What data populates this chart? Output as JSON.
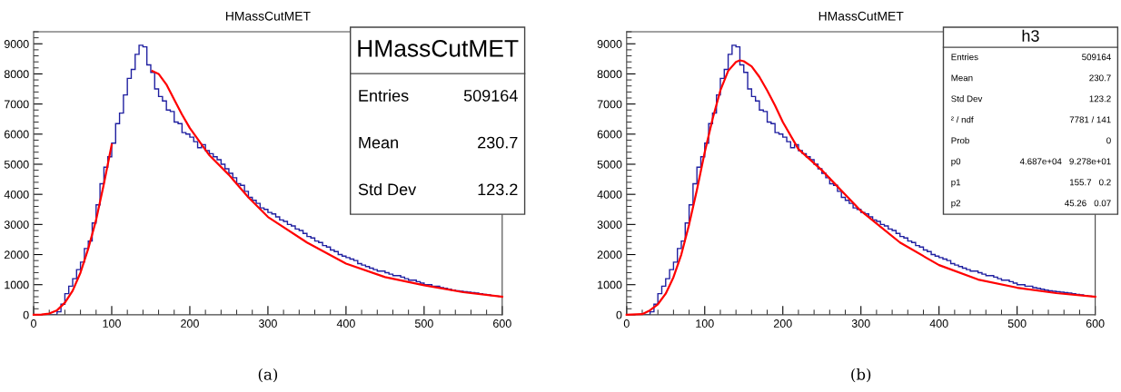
{
  "chart_data": [
    {
      "type": "histogram",
      "title": "HMassCutMET",
      "bins": [
        0,
        5,
        10,
        15,
        20,
        25,
        30,
        35,
        40,
        45,
        50,
        55,
        60,
        65,
        70,
        75,
        80,
        85,
        90,
        95,
        100,
        105,
        110,
        115,
        120,
        125,
        130,
        135,
        140,
        145,
        150,
        155,
        160,
        165,
        170,
        175,
        180,
        185,
        190,
        195,
        200,
        205,
        210,
        215,
        220,
        225,
        230,
        235,
        240,
        245,
        250,
        255,
        260,
        265,
        270,
        275,
        280,
        285,
        290,
        295,
        300,
        305,
        310,
        315,
        320,
        325,
        330,
        335,
        340,
        345,
        350,
        355,
        360,
        365,
        370,
        375,
        380,
        385,
        390,
        395,
        400,
        405,
        410,
        415,
        420,
        425,
        430,
        435,
        440,
        445,
        450,
        455,
        460,
        465,
        470,
        475,
        480,
        485,
        490,
        495,
        500,
        505,
        510,
        515,
        520,
        525,
        530,
        535,
        540,
        545,
        550,
        555,
        560,
        565,
        570,
        575,
        580,
        585,
        590,
        595,
        600
      ],
      "values": [
        0,
        0,
        0,
        0,
        0,
        0,
        100,
        350,
        700,
        950,
        1200,
        1500,
        1750,
        2200,
        2450,
        3050,
        3650,
        4350,
        4900,
        5250,
        5700,
        6350,
        6700,
        7300,
        7850,
        8150,
        8650,
        8950,
        8900,
        8300,
        8050,
        7500,
        7250,
        7100,
        6800,
        6750,
        6400,
        6350,
        6050,
        6000,
        5900,
        5750,
        5550,
        5650,
        5450,
        5350,
        5250,
        5150,
        5000,
        4850,
        4700,
        4550,
        4350,
        4300,
        4100,
        3900,
        3800,
        3700,
        3550,
        3500,
        3400,
        3350,
        3250,
        3150,
        3100,
        3000,
        2950,
        2850,
        2800,
        2700,
        2600,
        2550,
        2450,
        2400,
        2300,
        2250,
        2150,
        2100,
        2000,
        1950,
        1900,
        1850,
        1800,
        1700,
        1650,
        1600,
        1550,
        1500,
        1450,
        1450,
        1400,
        1350,
        1300,
        1300,
        1250,
        1200,
        1150,
        1150,
        1100,
        1050,
        1000,
        1000,
        950,
        950,
        900,
        880,
        850,
        820,
        800,
        780,
        770,
        750,
        740,
        720,
        700,
        680,
        660,
        640,
        620,
        610
      ],
      "color": "#1f1fa0",
      "series": [
        {
          "type": "line",
          "color": "#ff0000",
          "x": [
            0,
            10,
            20,
            30,
            40,
            50,
            60,
            70,
            80,
            90,
            100
          ],
          "values": [
            0,
            10,
            40,
            150,
            400,
            800,
            1400,
            2200,
            3150,
            4350,
            5650
          ]
        },
        {
          "type": "line",
          "color": "#ff0000",
          "x": [
            152,
            160,
            170,
            180,
            190,
            200,
            225,
            250,
            275,
            300,
            350,
            400,
            450,
            500,
            550,
            600
          ],
          "values": [
            8100,
            8000,
            7650,
            7150,
            6650,
            6200,
            5300,
            4650,
            3900,
            3250,
            2400,
            1700,
            1250,
            980,
            750,
            600
          ]
        }
      ],
      "xlim": [
        0,
        600
      ],
      "xticks": [
        0,
        100,
        200,
        300,
        400,
        500,
        600
      ],
      "ylim": [
        0,
        9400
      ],
      "yticks": [
        0,
        1000,
        2000,
        3000,
        4000,
        5000,
        6000,
        7000,
        8000,
        9000
      ],
      "annotations": [
        "HMassCutMET",
        "Entries",
        "509164",
        "Mean",
        "230.7",
        "Std Dev",
        "123.2",
        "(a)"
      ]
    },
    {
      "type": "histogram",
      "title": "HMassCutMET",
      "bins": [
        0,
        5,
        10,
        15,
        20,
        25,
        30,
        35,
        40,
        45,
        50,
        55,
        60,
        65,
        70,
        75,
        80,
        85,
        90,
        95,
        100,
        105,
        110,
        115,
        120,
        125,
        130,
        135,
        140,
        145,
        150,
        155,
        160,
        165,
        170,
        175,
        180,
        185,
        190,
        195,
        200,
        205,
        210,
        215,
        220,
        225,
        230,
        235,
        240,
        245,
        250,
        255,
        260,
        265,
        270,
        275,
        280,
        285,
        290,
        295,
        300,
        305,
        310,
        315,
        320,
        325,
        330,
        335,
        340,
        345,
        350,
        355,
        360,
        365,
        370,
        375,
        380,
        385,
        390,
        395,
        400,
        405,
        410,
        415,
        420,
        425,
        430,
        435,
        440,
        445,
        450,
        455,
        460,
        465,
        470,
        475,
        480,
        485,
        490,
        495,
        500,
        505,
        510,
        515,
        520,
        525,
        530,
        535,
        540,
        545,
        550,
        555,
        560,
        565,
        570,
        575,
        580,
        585,
        590,
        595,
        600
      ],
      "values": [
        0,
        0,
        0,
        0,
        0,
        0,
        100,
        350,
        700,
        950,
        1200,
        1500,
        1750,
        2200,
        2450,
        3050,
        3650,
        4350,
        4900,
        5250,
        5700,
        6350,
        6700,
        7300,
        7850,
        8150,
        8650,
        8950,
        8900,
        8300,
        8050,
        7500,
        7250,
        7100,
        6800,
        6750,
        6400,
        6350,
        6050,
        6000,
        5900,
        5750,
        5550,
        5650,
        5450,
        5350,
        5250,
        5150,
        5000,
        4850,
        4700,
        4550,
        4350,
        4300,
        4100,
        3900,
        3800,
        3700,
        3550,
        3500,
        3400,
        3350,
        3250,
        3150,
        3100,
        3000,
        2950,
        2850,
        2800,
        2700,
        2600,
        2550,
        2450,
        2400,
        2300,
        2250,
        2150,
        2100,
        2000,
        1950,
        1900,
        1850,
        1800,
        1700,
        1650,
        1600,
        1550,
        1500,
        1450,
        1450,
        1400,
        1350,
        1300,
        1300,
        1250,
        1200,
        1150,
        1150,
        1100,
        1050,
        1000,
        1000,
        950,
        950,
        900,
        880,
        850,
        820,
        800,
        780,
        770,
        750,
        740,
        720,
        700,
        680,
        660,
        640,
        620,
        610
      ],
      "color": "#1f1fa0",
      "series": [
        {
          "type": "line",
          "color": "#ff0000",
          "x": [
            0,
            20,
            30,
            40,
            50,
            60,
            70,
            80,
            90,
            100,
            110,
            120,
            130,
            140,
            145,
            150,
            160,
            170,
            180,
            190,
            200,
            220,
            250,
            300,
            350,
            400,
            450,
            500,
            550,
            600
          ],
          "values": [
            0,
            20,
            150,
            350,
            700,
            1250,
            2000,
            3000,
            4150,
            5400,
            6500,
            7450,
            8100,
            8400,
            8450,
            8420,
            8250,
            7900,
            7450,
            6950,
            6400,
            5500,
            4800,
            3450,
            2400,
            1650,
            1170,
            900,
            720,
            600
          ]
        }
      ],
      "xlim": [
        0,
        600
      ],
      "xticks": [
        0,
        100,
        200,
        300,
        400,
        500,
        600
      ],
      "ylim": [
        0,
        9400
      ],
      "yticks": [
        0,
        1000,
        2000,
        3000,
        4000,
        5000,
        6000,
        7000,
        8000,
        9000
      ],
      "annotations": [
        "h3",
        "Entries",
        "509164",
        "Mean",
        "230.7",
        "Std Dev",
        "123.2",
        "² / ndf",
        "7781 / 141",
        "Prob",
        "0",
        "p0",
        "4.687e+04   9.278e+01",
        "p1",
        "155.7   0.2",
        "p2",
        "45.26   0.07",
        "(b)"
      ]
    }
  ]
}
